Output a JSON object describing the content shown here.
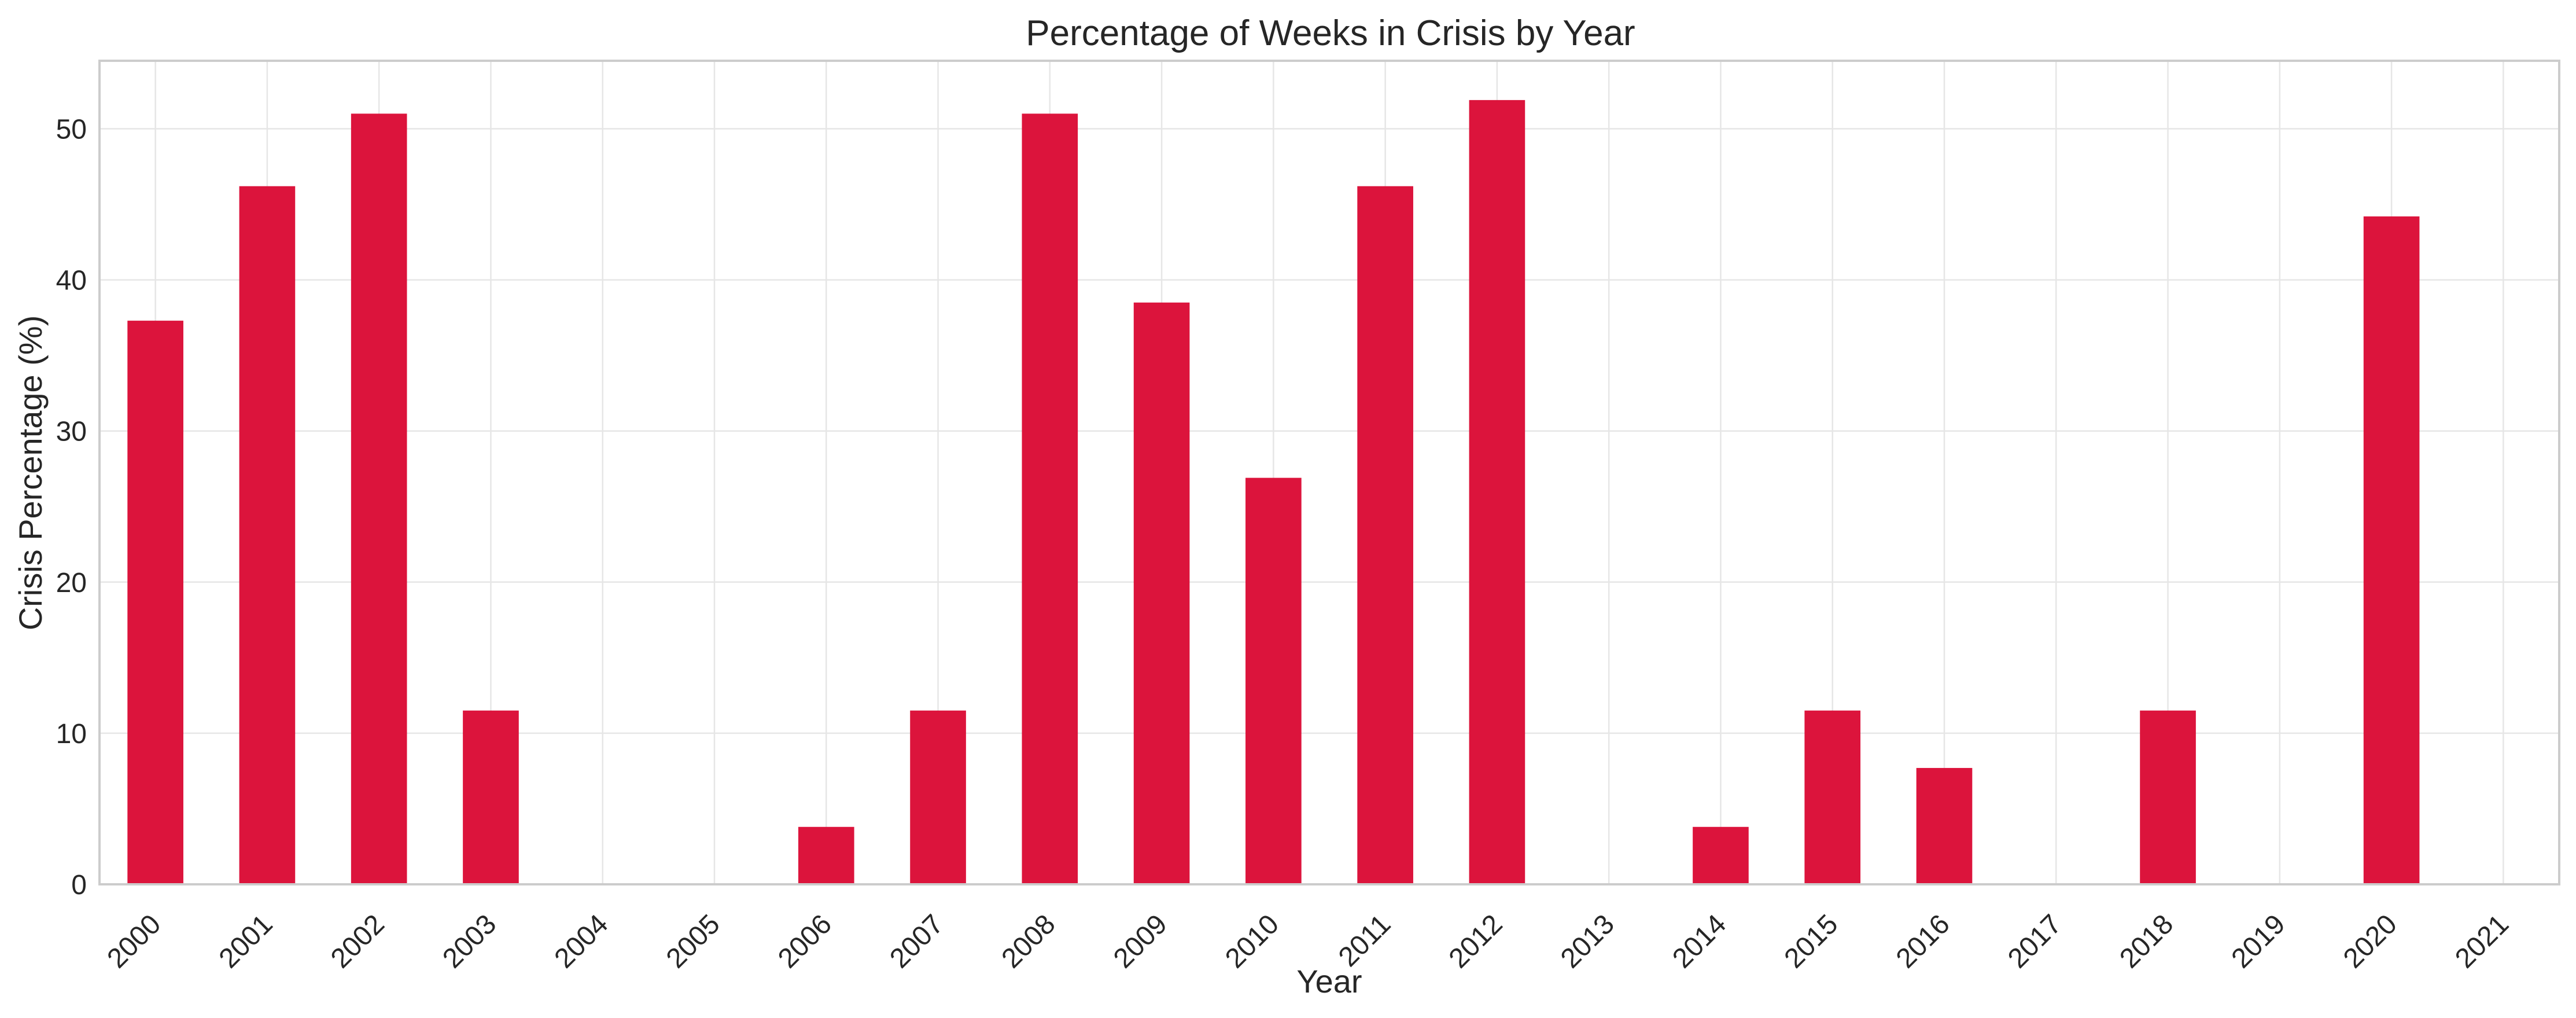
{
  "chart_data": {
    "type": "bar",
    "title": "Percentage of Weeks in Crisis by Year",
    "xlabel": "Year",
    "ylabel": "Crisis Percentage (%)",
    "categories": [
      "2000",
      "2001",
      "2002",
      "2003",
      "2004",
      "2005",
      "2006",
      "2007",
      "2008",
      "2009",
      "2010",
      "2011",
      "2012",
      "2013",
      "2014",
      "2015",
      "2016",
      "2017",
      "2018",
      "2019",
      "2020",
      "2021"
    ],
    "values": [
      37.3,
      46.2,
      51.0,
      11.5,
      0,
      0,
      3.8,
      11.5,
      51.0,
      38.5,
      26.9,
      46.2,
      51.9,
      0,
      3.8,
      11.5,
      7.7,
      0,
      11.5,
      0,
      44.2,
      0
    ],
    "ylim": [
      0,
      54.5
    ],
    "yticks": [
      0,
      10,
      20,
      30,
      40,
      50
    ],
    "grid": true,
    "legend": "none",
    "colors": {
      "bar": "#dc143c"
    }
  }
}
